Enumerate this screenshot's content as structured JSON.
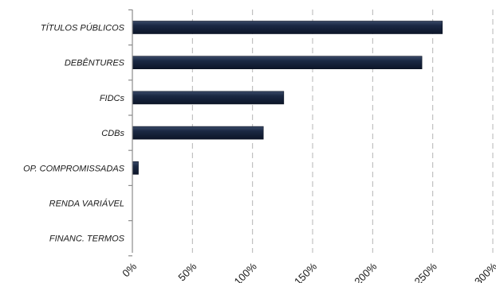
{
  "chart_data": {
    "type": "bar",
    "orientation": "horizontal",
    "categories": [
      "TÍTULOS PÚBLICOS",
      "DEBÊNTURES",
      "FIDCs",
      "CDBs",
      "OP. COMPROMISSADAS",
      "RENDA VARIÁVEL",
      "FINANC. TERMOS"
    ],
    "values": [
      258,
      241,
      126,
      109,
      5,
      0,
      0
    ],
    "x_ticks": [
      "0%",
      "50%",
      "100%",
      "150%",
      "200%",
      "250%",
      "300%"
    ],
    "xlim": [
      0,
      300
    ],
    "title": "",
    "xlabel": "",
    "ylabel": "",
    "grid": "vertical dashed",
    "legend": "none",
    "bar_color": "#16233d"
  }
}
